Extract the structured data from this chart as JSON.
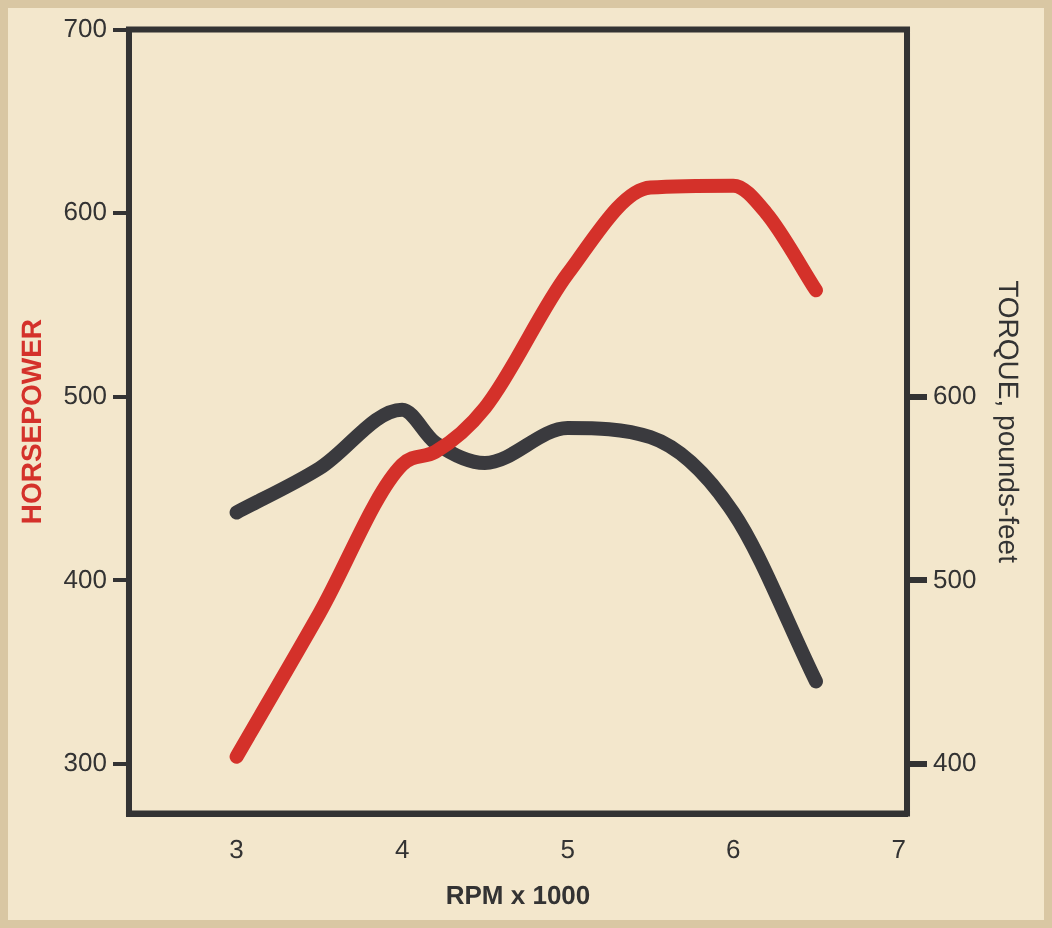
{
  "chart_data": {
    "type": "line",
    "xlabel": "RPM x 1000",
    "ylabel": "HORSEPOWER",
    "y2label": "TORQUE, pounds-feet",
    "xlim": [
      2.35,
      7.05
    ],
    "xticks": [
      3,
      4,
      5,
      6,
      7
    ],
    "ylim": [
      273,
      700
    ],
    "yticks": [
      300,
      400,
      500,
      600,
      700
    ],
    "y2lim": [
      373,
      800
    ],
    "y2ticks": [
      400,
      500,
      600
    ],
    "grid": false,
    "legend": false,
    "marker": "none",
    "line_style": "solid",
    "series": [
      {
        "color": "#d4312a",
        "x": [
          3,
          3.5,
          4,
          4.2,
          4.5,
          5,
          5.5,
          6,
          6.2,
          6.5
        ],
        "values": [
          304,
          382,
          463,
          470,
          494,
          567,
          614,
          615,
          600,
          558
        ]
      },
      {
        "color": "#3a3a3e",
        "axis": "y2",
        "x": [
          3,
          3.5,
          4,
          4.2,
          4.5,
          5,
          5.5,
          6,
          6.5
        ],
        "values": [
          537,
          561,
          593,
          575,
          564,
          583,
          578,
          537,
          445
        ]
      }
    ]
  }
}
